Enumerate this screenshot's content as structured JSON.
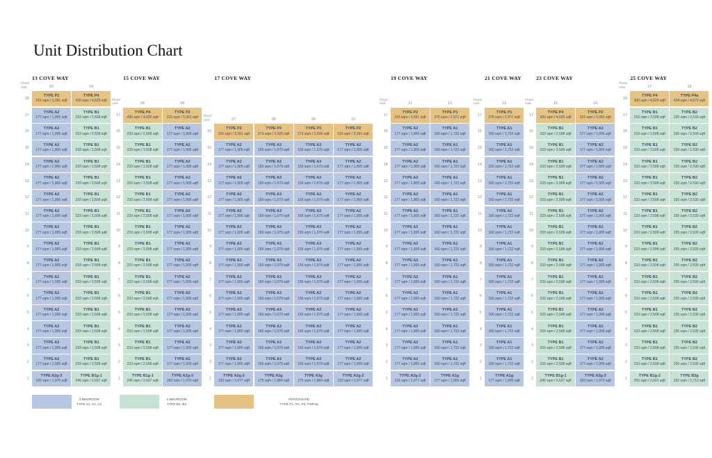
{
  "title": "Unit Distribution Chart",
  "floor_unit_label": "Floor/ Unit",
  "colors": {
    "bed3": "#b6c6e3",
    "bed4": "#c9e2d6",
    "penthouse": "#e6c383"
  },
  "legend": [
    {
      "cat": "bed3",
      "line1": "3-BEDROOM",
      "line2": "TYPE A1, A2, A3"
    },
    {
      "cat": "bed4",
      "line1": "4-BEDROOM",
      "line2": "TYPE B1, B2"
    },
    {
      "cat": "penthouse",
      "line1": "PENTHOUSE",
      "line2": "TYPE P1, P2, P3, P4/P4a"
    }
  ],
  "chart_data": {
    "type": "table",
    "title": "Unit Distribution Chart",
    "towers": [
      {
        "name": "13 COVE WAY",
        "units": [
          "03",
          "04"
        ],
        "rows": [
          {
            "floor": 18,
            "cells": [
              {
                "type": "TYPE P2",
                "area": "315 sqm / 3,391 sqft",
                "cat": "penthouse"
              },
              {
                "type": "TYPE P4",
                "area": "430 sqm / 4,629 sqft",
                "cat": "penthouse"
              }
            ]
          },
          {
            "floor_from": 17,
            "floor_to": 2,
            "cells": [
              {
                "type": "TYPE A2",
                "area": "177 sqm / 1,905 sqft",
                "cat": "bed3"
              },
              {
                "type": "TYPE B1",
                "area": "233 sqm / 2,508 sqft",
                "cat": "bed4"
              }
            ]
          },
          {
            "floor": 1,
            "cells": [
              {
                "type": "TYPE A2g-3",
                "area": "183 sqm / 1,970 sqft",
                "cat": "bed3"
              },
              {
                "type": "TYPE B1g-1",
                "area": "245 sqm / 2,637 sqft",
                "cat": "bed4"
              }
            ]
          }
        ]
      },
      {
        "name": "15 COVE WAY",
        "units": [
          "05",
          "06"
        ],
        "rows": [
          {
            "floor": 17,
            "cells": [
              {
                "type": "TYPE P4",
                "area": "430 sqm / 4,629 sqft",
                "cat": "penthouse"
              },
              {
                "type": "TYPE P2",
                "area": "315 sqm / 3,391 sqft",
                "cat": "penthouse"
              }
            ]
          },
          {
            "floor_from": 16,
            "floor_to": 2,
            "cells": [
              {
                "type": "TYPE B1",
                "area": "233 sqm / 2,508 sqft",
                "cat": "bed4"
              },
              {
                "type": "TYPE A2",
                "area": "177 sqm / 1,905 sqft",
                "cat": "bed3"
              }
            ]
          },
          {
            "floor": 1,
            "cells": [
              {
                "type": "TYPE B1g-1",
                "area": "245 sqm / 2,637 sqft",
                "cat": "bed4"
              },
              {
                "type": "TYPE A2g-3",
                "area": "183 sqm / 1,970 sqft",
                "cat": "bed3"
              }
            ]
          }
        ]
      },
      {
        "name": "17 COVE WAY",
        "units": [
          "07",
          "08",
          "09",
          "10"
        ],
        "rows": [
          {
            "floor": 16,
            "cells": [
              {
                "type": "TYPE P2",
                "area": "315 sqm / 3,391 sqft",
                "cat": "penthouse"
              },
              {
                "type": "TYPE P3",
                "area": "273 sqm / 2,939 sqft",
                "cat": "penthouse"
              },
              {
                "type": "TYPE P3",
                "area": "273 sqm / 2,939 sqft",
                "cat": "penthouse"
              },
              {
                "type": "TYPE P2",
                "area": "315 sqm / 3,391 sqft",
                "cat": "penthouse"
              }
            ]
          },
          {
            "floor_from": 15,
            "floor_to": 2,
            "cells": [
              {
                "type": "TYPE A2",
                "area": "177 sqm / 1,905 sqft",
                "cat": "bed3"
              },
              {
                "type": "TYPE A3",
                "area": "156 sqm / 1,679 sqft",
                "cat": "bed3"
              },
              {
                "type": "TYPE A3",
                "area": "156 sqm / 1,679 sqft",
                "cat": "bed3"
              },
              {
                "type": "TYPE A2",
                "area": "177 sqm / 1,905 sqft",
                "cat": "bed3"
              }
            ]
          },
          {
            "floor": 1,
            "cells": [
              {
                "type": "TYPE A2g-2",
                "area": "193 sqm / 2,077 sqft",
                "cat": "bed3"
              },
              {
                "type": "TYPE A3g",
                "area": "175 sqm / 1,884 sqft",
                "cat": "bed3"
              },
              {
                "type": "TYPE A3g",
                "area": "175 sqm / 1,884 sqft",
                "cat": "bed3"
              },
              {
                "type": "TYPE A2g-2",
                "area": "193 sqm / 2,077 sqft",
                "cat": "bed3"
              }
            ]
          }
        ]
      },
      {
        "name": "19 COVE WAY",
        "units": [
          "11",
          "12"
        ],
        "rows": [
          {
            "floor": 17,
            "cells": [
              {
                "type": "TYPE P2",
                "area": "315 sqm / 3,391 sqft",
                "cat": "penthouse"
              },
              {
                "type": "TYPE P1",
                "area": "276 sqm / 2,971 sqft",
                "cat": "penthouse"
              }
            ]
          },
          {
            "floor_from": 16,
            "floor_to": 2,
            "cells": [
              {
                "type": "TYPE A2",
                "area": "177 sqm / 1,905 sqft",
                "cat": "bed3"
              },
              {
                "type": "TYPE A1",
                "area": "160 sqm / 1,722 sqft",
                "cat": "bed3"
              }
            ]
          },
          {
            "floor": 1,
            "cells": [
              {
                "type": "TYPE A2g-2",
                "area": "193 sqm / 2,077 sqft",
                "cat": "bed3"
              },
              {
                "type": "TYPE A1g",
                "area": "177 sqm / 1,905 sqft",
                "cat": "bed3"
              }
            ]
          }
        ]
      },
      {
        "name": "21 COVE WAY",
        "units": [
          "13"
        ],
        "rows": [
          {
            "floor": 17,
            "cells": [
              {
                "type": "TYPE P1",
                "area": "276 sqm / 2,971 sqft",
                "cat": "penthouse"
              }
            ]
          },
          {
            "floor_from": 16,
            "floor_to": 2,
            "cells": [
              {
                "type": "TYPE A1",
                "area": "160 sqm / 1,722 sqft",
                "cat": "bed3"
              }
            ]
          },
          {
            "floor": 1,
            "cells": [
              {
                "type": "TYPE A1g",
                "area": "177 sqm / 1,905 sqft",
                "cat": "bed3"
              }
            ]
          }
        ]
      },
      {
        "name": "23 COVE WAY",
        "units": [
          "15",
          "16"
        ],
        "rows": [
          {
            "floor": 17,
            "cells": [
              {
                "type": "TYPE P4",
                "area": "430 sqm / 4,629 sqft",
                "cat": "penthouse"
              },
              {
                "type": "TYPE P2",
                "area": "315 sqm / 3,391 sqft",
                "cat": "penthouse"
              }
            ]
          },
          {
            "floor_from": 16,
            "floor_to": 2,
            "cells": [
              {
                "type": "TYPE B1",
                "area": "233 sqm / 2,508 sqft",
                "cat": "bed4"
              },
              {
                "type": "TYPE A2",
                "area": "177 sqm / 1,905 sqft",
                "cat": "bed3"
              }
            ]
          },
          {
            "floor": 1,
            "cells": [
              {
                "type": "TYPE B1g-1",
                "area": "245 sqm / 2,637 sqft",
                "cat": "bed4"
              },
              {
                "type": "TYPE A2g-3",
                "area": "183 sqm / 1,970 sqft",
                "cat": "bed3"
              }
            ]
          }
        ]
      },
      {
        "name": "25 COVE WAY",
        "units": [
          "17",
          "18"
        ],
        "rows": [
          {
            "floor": 18,
            "cells": [
              {
                "type": "TYPE P4",
                "area": "430 sqm / 4,629 sqft",
                "cat": "penthouse"
              },
              {
                "type": "TYPE P4a",
                "area": "434 sqm / 4,672 sqft",
                "cat": "penthouse"
              }
            ]
          },
          {
            "floor_from": 17,
            "floor_to": 2,
            "cells": [
              {
                "type": "TYPE B1",
                "area": "233 sqm / 2,508 sqft",
                "cat": "bed4"
              },
              {
                "type": "TYPE B2",
                "area": "235 sqm / 2,530 sqft",
                "cat": "bed4"
              }
            ]
          },
          {
            "floor": 1,
            "cells": [
              {
                "type": "TYPE B1g-2",
                "area": "250 sqm / 2,691 sqft",
                "cat": "bed4"
              },
              {
                "type": "TYPE B2g",
                "area": "252 sqm / 2,713 sqft",
                "cat": "bed4"
              }
            ]
          }
        ]
      }
    ]
  }
}
